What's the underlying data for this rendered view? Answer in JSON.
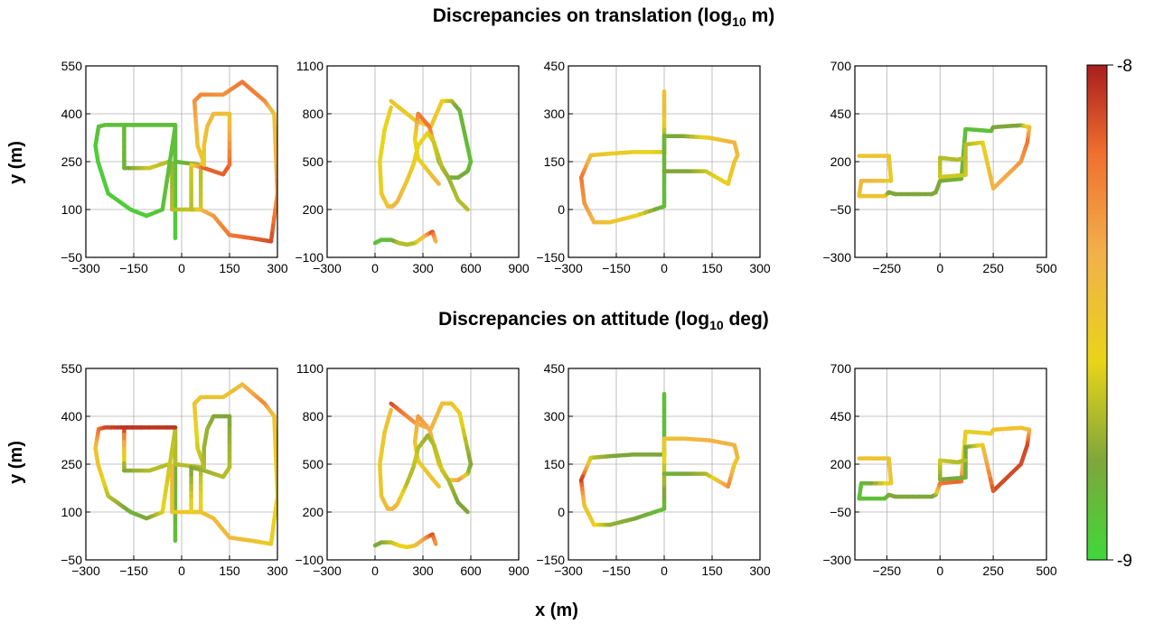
{
  "titles": {
    "translation": "Discrepancies on translation (log",
    "translation_sub": "10",
    "translation_unit": " m)",
    "attitude": "Discrepancies on attitude (log",
    "attitude_sub": "10",
    "attitude_unit": " deg)"
  },
  "labels": {
    "y_top": "y (m)",
    "y_bottom": "y (m)",
    "x": "x (m)"
  },
  "colorbar": {
    "max_label": "-8",
    "min_label": "-9",
    "colors": [
      "#40d83a",
      "#7fa63a",
      "#e8d41a",
      "#f2b04a",
      "#f07030",
      "#a81e1e"
    ]
  },
  "chart_data": [
    {
      "type": "line",
      "panel": "translation-1",
      "xlim": [
        -300,
        300
      ],
      "ylim": [
        -50,
        550
      ],
      "xticks": [
        -300,
        -150,
        0,
        150,
        300
      ],
      "yticks": [
        -50,
        100,
        250,
        400,
        550
      ],
      "grid": true,
      "series": [
        {
          "x": [
            -20,
            -20,
            -180,
            -180,
            -100,
            -40,
            -30,
            -30,
            60,
            60,
            -20,
            -20,
            -60,
            -110,
            -160,
            -230,
            -262,
            -270,
            -260,
            -240,
            -180,
            -20
          ],
          "y": [
            10,
            365,
            365,
            230,
            230,
            250,
            245,
            100,
            100,
            240,
            250,
            360,
            100,
            80,
            100,
            150,
            250,
            300,
            360,
            365,
            365,
            365
          ],
          "color_values": [
            0.05,
            0.1,
            0.1,
            0.15,
            0.35,
            0.3,
            0.25,
            0.3,
            0.35,
            0.3,
            0.1,
            0.1,
            0.1,
            0.05,
            0.05,
            0.05,
            0.05,
            0.05,
            0.1,
            0.1,
            0.1,
            0.1
          ]
        },
        {
          "x": [
            60,
            70,
            50,
            40,
            60,
            130,
            190,
            260,
            290,
            300,
            280,
            220,
            150,
            100,
            60,
            30,
            30,
            70,
            130,
            150,
            150,
            100,
            80,
            70,
            70
          ],
          "y": [
            240,
            245,
            300,
            440,
            460,
            460,
            500,
            440,
            400,
            150,
            0,
            10,
            20,
            80,
            100,
            100,
            240,
            230,
            210,
            240,
            400,
            400,
            360,
            300,
            240
          ],
          "color_values": [
            0.45,
            0.5,
            0.5,
            0.7,
            0.75,
            0.7,
            0.8,
            0.75,
            0.5,
            0.7,
            0.9,
            0.85,
            0.8,
            0.7,
            0.6,
            0.3,
            0.35,
            0.85,
            0.85,
            0.85,
            0.5,
            0.55,
            0.55,
            0.5,
            0.45
          ]
        }
      ]
    },
    {
      "type": "line",
      "panel": "translation-2",
      "xlim": [
        -300,
        900
      ],
      "ylim": [
        -100,
        1100
      ],
      "xticks": [
        -300,
        0,
        300,
        600,
        900
      ],
      "yticks": [
        -100,
        200,
        500,
        800,
        1100
      ],
      "grid": true,
      "series": [
        {
          "x": [
            0,
            40,
            100,
            150,
            200,
            250,
            320,
            360,
            380
          ],
          "y": [
            -10,
            10,
            10,
            -10,
            -20,
            -10,
            40,
            60,
            0
          ],
          "color_values": [
            0.1,
            0.1,
            0.1,
            0.3,
            0.3,
            0.3,
            0.6,
            0.9,
            0.6
          ]
        },
        {
          "x": [
            100,
            250,
            350,
            420,
            480,
            530,
            600,
            580,
            520,
            460,
            400,
            340,
            270,
            250,
            270,
            350,
            400
          ],
          "y": [
            880,
            760,
            720,
            880,
            880,
            820,
            500,
            440,
            400,
            400,
            500,
            720,
            800,
            640,
            520,
            420,
            360
          ],
          "color_values": [
            0.5,
            0.45,
            0.5,
            0.45,
            0.3,
            0.15,
            0.1,
            0.15,
            0.2,
            0.15,
            0.2,
            0.8,
            0.8,
            0.4,
            0.4,
            0.5,
            0.6
          ]
        },
        {
          "x": [
            100,
            60,
            30,
            40,
            80,
            110,
            140,
            200,
            240,
            260,
            270,
            330,
            370,
            420,
            460,
            520,
            580
          ],
          "y": [
            840,
            700,
            500,
            300,
            220,
            220,
            250,
            380,
            480,
            560,
            600,
            680,
            620,
            460,
            400,
            260,
            200
          ],
          "color_values": [
            0.45,
            0.4,
            0.4,
            0.45,
            0.5,
            0.55,
            0.6,
            0.5,
            0.45,
            0.4,
            0.4,
            0.4,
            0.35,
            0.3,
            0.25,
            0.3,
            0.3
          ]
        }
      ]
    },
    {
      "type": "line",
      "panel": "translation-3",
      "xlim": [
        -300,
        300
      ],
      "ylim": [
        -150,
        450
      ],
      "xticks": [
        -300,
        -150,
        0,
        150,
        300
      ],
      "yticks": [
        -150,
        0,
        150,
        300,
        450
      ],
      "grid": true,
      "series": [
        {
          "x": [
            0,
            0,
            0,
            0,
            0,
            -100,
            -170,
            -230,
            -260,
            -250,
            -220,
            -170,
            -90,
            0,
            0,
            60,
            140,
            220,
            230,
            220,
            200,
            130,
            70,
            0
          ],
          "y": [
            370,
            300,
            200,
            175,
            180,
            180,
            175,
            170,
            100,
            20,
            -40,
            -40,
            -20,
            10,
            230,
            230,
            225,
            210,
            170,
            150,
            80,
            120,
            120,
            120
          ],
          "color_values": [
            0.5,
            0.55,
            0.15,
            0.2,
            0.35,
            0.45,
            0.45,
            0.5,
            0.8,
            0.7,
            0.6,
            0.5,
            0.45,
            0.1,
            0.15,
            0.2,
            0.45,
            0.6,
            0.55,
            0.5,
            0.45,
            0.35,
            0.2,
            0.2
          ]
        }
      ]
    },
    {
      "type": "line",
      "panel": "translation-4",
      "xlim": [
        -400,
        500
      ],
      "ylim": [
        -300,
        700
      ],
      "xticks": [
        -250,
        0,
        250,
        500
      ],
      "yticks": [
        -300,
        -50,
        200,
        450,
        700
      ],
      "grid": true,
      "series": [
        {
          "x": [
            -380,
            -240,
            -230,
            -370,
            -380,
            -260,
            -240,
            -210,
            -40,
            -20,
            0,
            100,
            110,
            120,
            240,
            250,
            380,
            420,
            410,
            380,
            250,
            200,
            120,
            120,
            0,
            0,
            80,
            120
          ],
          "y": [
            230,
            230,
            100,
            100,
            20,
            20,
            40,
            30,
            30,
            40,
            100,
            110,
            240,
            370,
            360,
            380,
            390,
            380,
            300,
            200,
            60,
            300,
            290,
            130,
            120,
            220,
            210,
            220
          ],
          "color_values": [
            0.5,
            0.5,
            0.45,
            0.6,
            0.5,
            0.5,
            0.2,
            0.2,
            0.2,
            0.2,
            0.2,
            0.15,
            0.15,
            0.1,
            0.1,
            0.2,
            0.2,
            0.5,
            0.8,
            0.7,
            0.6,
            0.4,
            0.3,
            0.35,
            0.35,
            0.3,
            0.3,
            0.3
          ]
        }
      ]
    },
    {
      "type": "line",
      "panel": "attitude-1",
      "xlim": [
        -300,
        300
      ],
      "ylim": [
        -50,
        550
      ],
      "xticks": [
        -300,
        -150,
        0,
        150,
        300
      ],
      "yticks": [
        -50,
        100,
        250,
        400,
        550
      ],
      "grid": true,
      "series": [
        {
          "x": [
            -20,
            -20,
            -180,
            -180,
            -100,
            -40,
            -30,
            -30,
            60,
            60,
            -20,
            -20,
            -60,
            -110,
            -160,
            -230,
            -262,
            -270,
            -260,
            -240,
            -180,
            -20
          ],
          "y": [
            10,
            365,
            365,
            230,
            230,
            250,
            245,
            100,
            100,
            240,
            250,
            360,
            100,
            80,
            100,
            150,
            250,
            300,
            360,
            365,
            365,
            365
          ],
          "color_values": [
            0.1,
            0.2,
            0.95,
            0.2,
            0.3,
            0.3,
            0.6,
            0.5,
            0.45,
            0.3,
            0.3,
            0.3,
            0.4,
            0.2,
            0.15,
            0.3,
            0.5,
            0.5,
            0.8,
            0.9,
            0.95,
            0.95
          ]
        },
        {
          "x": [
            60,
            70,
            50,
            40,
            60,
            130,
            190,
            260,
            290,
            300,
            280,
            220,
            150,
            100,
            60,
            30,
            30,
            70,
            130,
            150,
            150,
            100,
            80,
            70,
            70
          ],
          "y": [
            240,
            245,
            300,
            440,
            460,
            460,
            500,
            440,
            400,
            150,
            0,
            10,
            20,
            80,
            100,
            100,
            240,
            230,
            210,
            240,
            400,
            400,
            360,
            300,
            240
          ],
          "color_values": [
            0.3,
            0.3,
            0.35,
            0.5,
            0.5,
            0.5,
            0.55,
            0.75,
            0.5,
            0.4,
            0.45,
            0.5,
            0.55,
            0.55,
            0.5,
            0.45,
            0.2,
            0.25,
            0.3,
            0.3,
            0.2,
            0.2,
            0.25,
            0.25,
            0.3
          ]
        }
      ]
    },
    {
      "type": "line",
      "panel": "attitude-2",
      "xlim": [
        -300,
        900
      ],
      "ylim": [
        -100,
        1100
      ],
      "xticks": [
        -300,
        0,
        300,
        600,
        900
      ],
      "yticks": [
        -100,
        200,
        500,
        800,
        1100
      ],
      "grid": true,
      "series": [
        {
          "x": [
            0,
            40,
            100,
            150,
            200,
            250,
            320,
            360,
            380
          ],
          "y": [
            -10,
            10,
            10,
            -10,
            -20,
            -10,
            40,
            60,
            0
          ],
          "color_values": [
            0.15,
            0.2,
            0.3,
            0.4,
            0.4,
            0.5,
            0.7,
            0.9,
            0.7
          ]
        },
        {
          "x": [
            100,
            250,
            350,
            420,
            480,
            530,
            600,
            580,
            520,
            460,
            400,
            340,
            270,
            250,
            270,
            350,
            400
          ],
          "y": [
            880,
            760,
            720,
            880,
            880,
            820,
            500,
            440,
            400,
            400,
            500,
            720,
            800,
            640,
            520,
            420,
            360
          ],
          "color_values": [
            0.9,
            0.7,
            0.6,
            0.55,
            0.5,
            0.45,
            0.2,
            0.25,
            0.7,
            0.45,
            0.5,
            0.6,
            0.7,
            0.5,
            0.45,
            0.5,
            0.5
          ]
        },
        {
          "x": [
            100,
            60,
            30,
            40,
            80,
            110,
            140,
            200,
            240,
            260,
            270,
            330,
            370,
            420,
            460,
            520,
            580
          ],
          "y": [
            840,
            700,
            500,
            300,
            220,
            220,
            250,
            380,
            480,
            560,
            600,
            680,
            620,
            460,
            400,
            260,
            200
          ],
          "color_values": [
            0.55,
            0.5,
            0.45,
            0.5,
            0.55,
            0.6,
            0.55,
            0.3,
            0.3,
            0.35,
            0.3,
            0.25,
            0.3,
            0.35,
            0.3,
            0.2,
            0.2
          ]
        }
      ]
    },
    {
      "type": "line",
      "panel": "attitude-3",
      "xlim": [
        -300,
        300
      ],
      "ylim": [
        -150,
        450
      ],
      "xticks": [
        -300,
        -150,
        0,
        150,
        300
      ],
      "yticks": [
        -150,
        0,
        150,
        300,
        450
      ],
      "grid": true,
      "series": [
        {
          "x": [
            0,
            0,
            0,
            0,
            0,
            -100,
            -170,
            -230,
            -260,
            -250,
            -220,
            -170,
            -90,
            0,
            0,
            60,
            140,
            220,
            230,
            220,
            200,
            130,
            70,
            0
          ],
          "y": [
            370,
            300,
            200,
            175,
            180,
            180,
            175,
            170,
            100,
            20,
            -40,
            -40,
            -20,
            10,
            230,
            230,
            225,
            210,
            170,
            150,
            80,
            120,
            120,
            120
          ],
          "color_values": [
            0.1,
            0.1,
            0.1,
            0.15,
            0.2,
            0.2,
            0.2,
            0.3,
            0.95,
            0.5,
            0.45,
            0.25,
            0.2,
            0.1,
            0.5,
            0.55,
            0.6,
            0.6,
            0.55,
            0.45,
            0.75,
            0.3,
            0.2,
            0.15
          ]
        }
      ]
    },
    {
      "type": "line",
      "panel": "attitude-4",
      "xlim": [
        -400,
        500
      ],
      "ylim": [
        -300,
        700
      ],
      "xticks": [
        -250,
        0,
        250,
        500
      ],
      "yticks": [
        -300,
        -50,
        200,
        450,
        700
      ],
      "grid": true,
      "series": [
        {
          "x": [
            -380,
            -240,
            -230,
            -370,
            -380,
            -260,
            -240,
            -210,
            -40,
            -20,
            0,
            100,
            110,
            120,
            240,
            250,
            380,
            420,
            410,
            380,
            250,
            200,
            120,
            120,
            0,
            0,
            80,
            120
          ],
          "y": [
            230,
            230,
            100,
            100,
            20,
            20,
            40,
            30,
            30,
            40,
            100,
            110,
            240,
            370,
            360,
            380,
            390,
            380,
            300,
            200,
            60,
            300,
            290,
            130,
            120,
            220,
            210,
            220
          ],
          "color_values": [
            0.5,
            0.5,
            0.5,
            0.1,
            0.1,
            0.1,
            0.2,
            0.2,
            0.2,
            0.2,
            0.8,
            0.85,
            0.4,
            0.45,
            0.45,
            0.5,
            0.5,
            0.55,
            0.9,
            0.9,
            0.9,
            0.5,
            0.2,
            0.15,
            0.2,
            0.35,
            0.3,
            0.3
          ]
        }
      ]
    }
  ]
}
